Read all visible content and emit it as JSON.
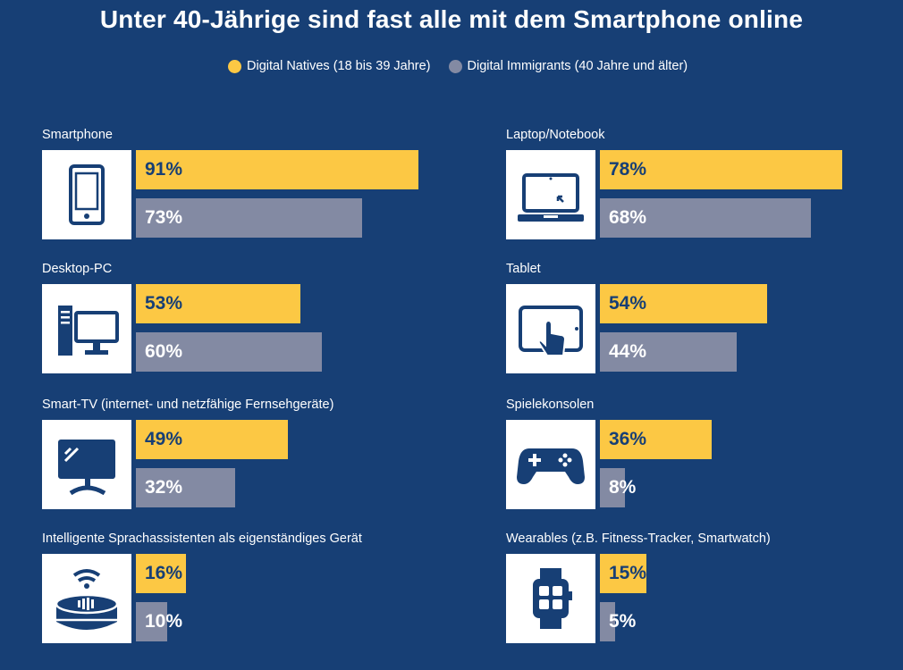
{
  "title": "Unter 40-Jährige sind fast alle mit dem Smartphone online",
  "colors": {
    "background": "#173f75",
    "native": "#fcc844",
    "immigrant": "#838aa3",
    "icon": "#173f75"
  },
  "chart_data": {
    "type": "bar",
    "title": "Unter 40-Jährige sind fast alle mit dem Smartphone online",
    "unit": "%",
    "series": [
      {
        "name": "Digital Natives (18 bis 39 Jahre)",
        "color": "#fcc844",
        "values": [
          91,
          78,
          53,
          54,
          49,
          36,
          16,
          15
        ]
      },
      {
        "name": "Digital Immigrants (40 Jahre und älter)",
        "color": "#838aa3",
        "values": [
          73,
          68,
          60,
          44,
          32,
          8,
          10,
          5
        ]
      }
    ],
    "categories": [
      "Smartphone",
      "Laptop/Notebook",
      "Desktop-PC",
      "Tablet",
      "Smart-TV (internet- und netzfähige Fernsehgeräte)",
      "Spielekonsolen",
      "Intelligente Sprachassistenten als eigenständiges Gerät",
      "Wearables (z.B. Fitness-Tracker, Smartwatch)"
    ],
    "icons": [
      "smartphone-icon",
      "laptop-icon",
      "desktop-pc-icon",
      "tablet-icon",
      "smart-tv-icon",
      "game-controller-icon",
      "smart-speaker-icon",
      "smartwatch-icon"
    ],
    "value_labels": {
      "native": [
        "91%",
        "78%",
        "53%",
        "54%",
        "49%",
        "36%",
        "16%",
        "15%"
      ],
      "immigrant": [
        "73%",
        "68%",
        "60%",
        "44%",
        "32%",
        "8%",
        "10%",
        "5%"
      ]
    },
    "ylim": [
      0,
      100
    ],
    "legend_position": "top-center",
    "grid": false
  }
}
